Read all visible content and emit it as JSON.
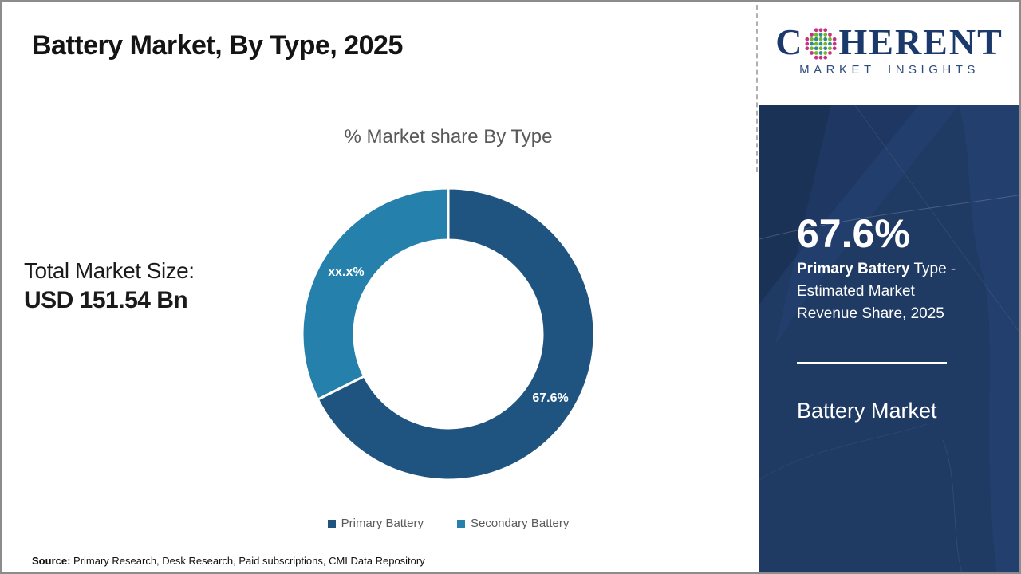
{
  "page": {
    "title": "Battery Market, By Type, 2025",
    "source_label": "Source:",
    "source_text": " Primary Research, Desk Research, Paid subscriptions, CMI Data Repository"
  },
  "logo": {
    "brand_prefix": "C",
    "brand_suffix": "HERENT",
    "brand_line2": "MARKET INSIGHTS",
    "globe_icon_colors": {
      "inner_teal": "#2e8a96",
      "inner_green": "#76b82a",
      "outer_pink": "#c73383"
    },
    "brand_color": "#1b3a6b"
  },
  "stats": {
    "total_label": "Total Market Size:",
    "total_value": "USD 151.54 Bn"
  },
  "chart_data": {
    "type": "pie",
    "subtype": "donut",
    "title": "% Market share By Type",
    "start_angle_deg": 0,
    "direction": "clockwise",
    "donut_hole_ratio": 0.64,
    "legend_position": "bottom",
    "series": [
      {
        "name": "Primary Battery",
        "value": 67.6,
        "display_label": "67.6%",
        "color": "#1E547F"
      },
      {
        "name": "Secondary Battery",
        "value": 32.4,
        "display_label": "xx.x%",
        "color": "#2580AB"
      }
    ]
  },
  "sidebar": {
    "stat_value": "67.6%",
    "desc_bold": "Primary Battery",
    "desc_rest": " Type - Estimated Market Revenue Share, 2025",
    "market_name": "Battery Market",
    "background_color": "#1f3a63"
  }
}
